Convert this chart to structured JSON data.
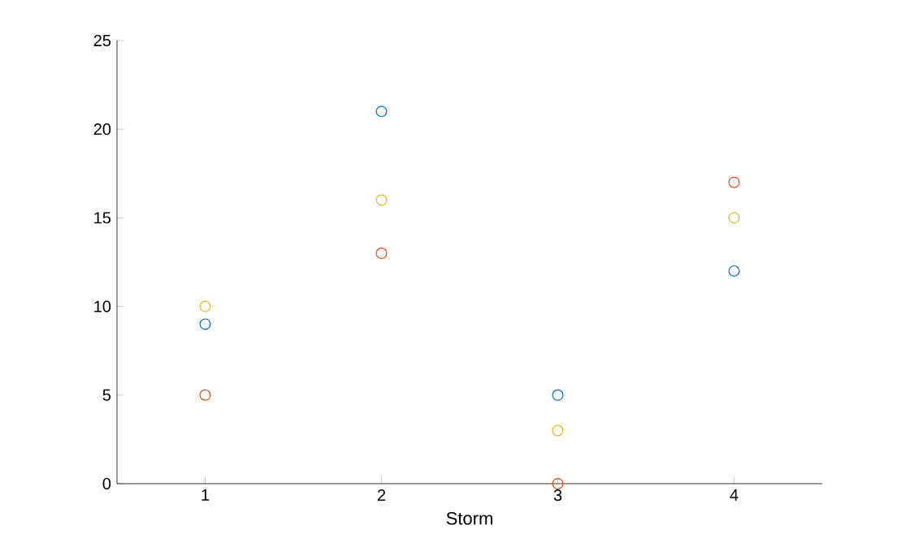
{
  "chart_data": {
    "type": "scatter",
    "xlabel": "Storm",
    "x": [
      1,
      2,
      3,
      4
    ],
    "xlim": [
      0.5,
      4.5
    ],
    "xticks": [
      1,
      2,
      3,
      4
    ],
    "ylim": [
      0,
      25
    ],
    "yticks": [
      0,
      5,
      10,
      15,
      20,
      25
    ],
    "marker": "circle",
    "series": [
      {
        "color": "#0072bd",
        "values": [
          9,
          21,
          5,
          12
        ]
      },
      {
        "color": "#d95319",
        "values": [
          5,
          13,
          0,
          17
        ]
      },
      {
        "color": "#edb120",
        "values": [
          10,
          16,
          3,
          15
        ]
      }
    ]
  }
}
